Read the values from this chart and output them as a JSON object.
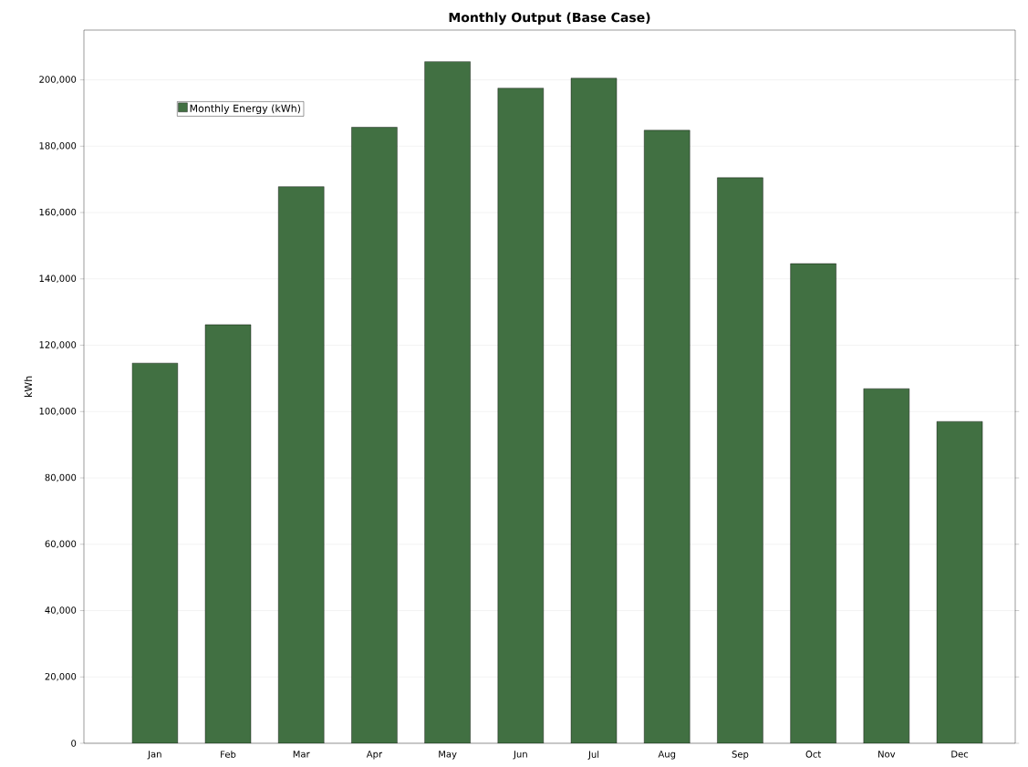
{
  "chart_data": {
    "type": "bar",
    "title": "Monthly Output (Base Case)",
    "ylabel": "kWh",
    "categories": [
      "Jan",
      "Feb",
      "Mar",
      "Apr",
      "May",
      "Jun",
      "Jul",
      "Aug",
      "Sep",
      "Oct",
      "Nov",
      "Dec"
    ],
    "series": [
      {
        "name": "Monthly Energy (kWh)",
        "color": "#417042",
        "values": [
          114600,
          126200,
          167800,
          185700,
          205500,
          197500,
          200500,
          184800,
          170500,
          144600,
          106900,
          97000
        ]
      }
    ],
    "ylim": [
      0,
      215000
    ],
    "yticks": [
      0,
      {
        "value": 20000,
        "label": "20,000"
      },
      {
        "value": 40000,
        "label": "40,000"
      },
      {
        "value": 60000,
        "label": "60,000"
      },
      {
        "value": 80000,
        "label": "80,000"
      },
      {
        "value": 100000,
        "label": "100,000"
      },
      {
        "value": 120000,
        "label": "120,000"
      },
      {
        "value": 140000,
        "label": "140,000"
      },
      {
        "value": 160000,
        "label": "160,000"
      },
      {
        "value": 180000,
        "label": "180,000"
      },
      {
        "value": 200000,
        "label": "200,000"
      }
    ],
    "grid": "y",
    "legend": "top left"
  }
}
